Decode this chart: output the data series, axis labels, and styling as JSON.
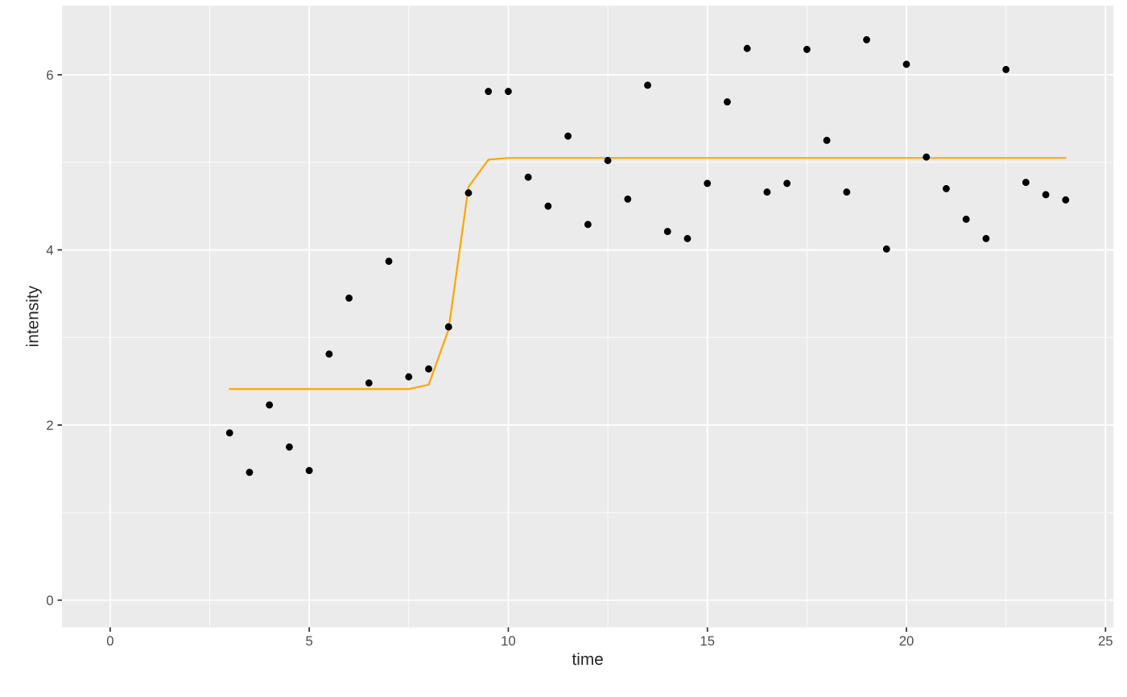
{
  "chart_data": {
    "type": "scatter",
    "xlabel": "time",
    "ylabel": "intensity",
    "xlim": [
      -1.21,
      25.2
    ],
    "ylim": [
      -0.31,
      6.79
    ],
    "xticks": [
      0,
      5,
      10,
      15,
      20,
      25
    ],
    "yticks": [
      0,
      2,
      4,
      6
    ],
    "grid": true,
    "legend": false,
    "series": [
      {
        "color": "#000000",
        "marker": "circle",
        "x": [
          3,
          3.5,
          4,
          4.5,
          5,
          5.5,
          6,
          6.5,
          7,
          7.5,
          8,
          8.5,
          9,
          9.5,
          10,
          10.5,
          11,
          11.5,
          12,
          12.5,
          13,
          13.5,
          14,
          14.5,
          15,
          15.5,
          16,
          16.5,
          17,
          17.5,
          18,
          18.5,
          19,
          19.5,
          20,
          20.5,
          21,
          21.5,
          22,
          22.5,
          23,
          23.5,
          24
        ],
        "values": [
          1.91,
          1.46,
          2.23,
          1.75,
          1.48,
          2.81,
          3.45,
          2.48,
          3.87,
          2.55,
          2.64,
          3.12,
          4.65,
          5.81,
          5.81,
          4.83,
          4.5,
          5.3,
          4.29,
          5.02,
          4.58,
          5.88,
          4.21,
          4.13,
          4.76,
          5.69,
          6.3,
          4.66,
          4.76,
          6.29,
          5.25,
          4.66,
          6.4,
          4.01,
          6.12,
          5.06,
          4.7,
          4.35,
          4.13,
          6.06,
          4.77,
          4.63,
          4.57
        ]
      },
      {
        "type": "line",
        "color": "#ffa500",
        "line_style": "solid",
        "x": [
          3,
          7.5,
          8,
          8.5,
          9,
          9.5,
          10,
          24
        ],
        "values": [
          2.41,
          2.41,
          2.46,
          3.09,
          4.72,
          5.03,
          5.05,
          5.05
        ]
      }
    ]
  }
}
